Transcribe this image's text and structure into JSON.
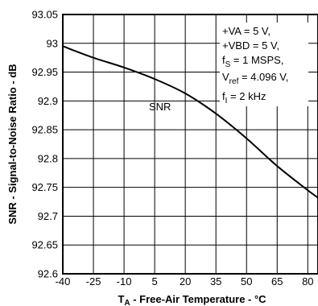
{
  "chart_data": {
    "type": "line",
    "xlabel_main": "T",
    "xlabel_sub": "A",
    "xlabel_rest": " - Free-Air Temperature - °C",
    "ylabel": "SNR - Signal-to-Noise Ratio - dB",
    "xlim": [
      -40,
      85
    ],
    "ylim": [
      92.6,
      93.05
    ],
    "x_ticks": [
      -40,
      -25,
      -10,
      5,
      20,
      35,
      50,
      65,
      80
    ],
    "y_ticks": [
      92.6,
      92.65,
      92.7,
      92.75,
      92.8,
      92.85,
      92.9,
      92.95,
      93,
      93.05
    ],
    "x_tick_labels": [
      "-40",
      "-25",
      "-10",
      "5",
      "20",
      "35",
      "50",
      "65",
      "80"
    ],
    "y_tick_labels": [
      "92.6",
      "92.65",
      "92.7",
      "92.75",
      "92.8",
      "92.85",
      "92.9",
      "92.95",
      "93",
      "93.05"
    ],
    "grid": true,
    "series": [
      {
        "name": "SNR",
        "x": [
          -40,
          -25,
          -10,
          5,
          20,
          35,
          50,
          65,
          80,
          85
        ],
        "y": [
          92.995,
          92.975,
          92.958,
          92.938,
          92.913,
          92.878,
          92.835,
          92.787,
          92.745,
          92.732
        ]
      }
    ],
    "annotation_lines": [
      {
        "main": "+VA = 5 V,",
        "sub": "",
        "rest": ""
      },
      {
        "main": "+VBD = 5 V,",
        "sub": "",
        "rest": ""
      },
      {
        "main": "f",
        "sub": "S",
        "rest": " = 1 MSPS,"
      },
      {
        "main": "V",
        "sub": "ref",
        "rest": " = 4.096 V,"
      },
      {
        "main": "f",
        "sub": "I",
        "rest": " = 2 kHz"
      }
    ]
  }
}
